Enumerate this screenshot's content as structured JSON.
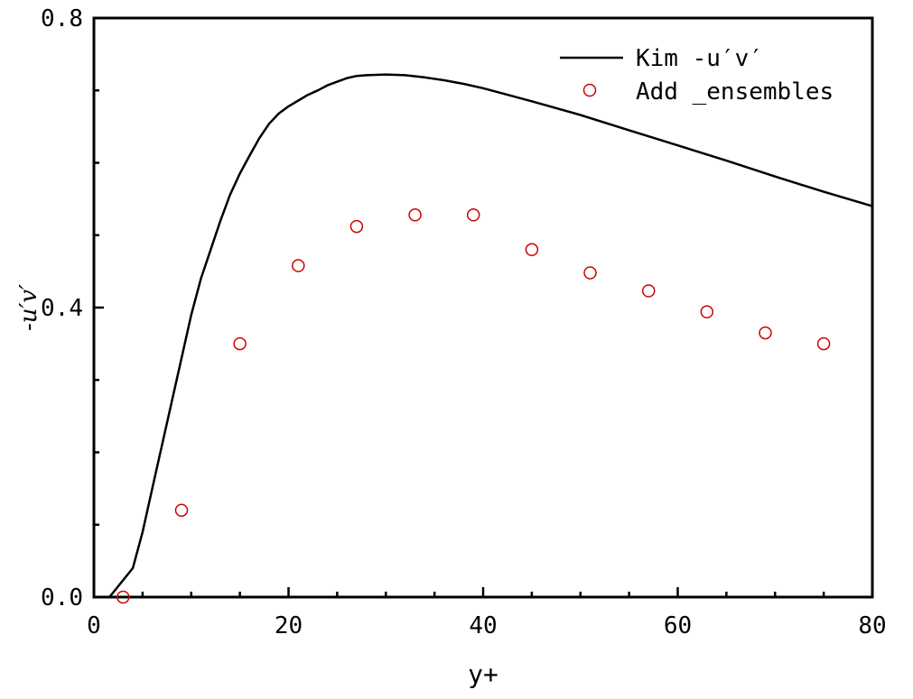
{
  "chart_data": {
    "type": "scatter",
    "xlabel": "y+",
    "ylabel": "-u′v′",
    "xlim": [
      0,
      80
    ],
    "ylim": [
      0,
      0.8
    ],
    "x_ticks": [
      "0",
      "20",
      "40",
      "60",
      "80"
    ],
    "y_ticks": [
      "0.0",
      "0.4",
      "0.8"
    ],
    "y_tick_values": [
      0,
      0.4,
      0.8
    ],
    "grid": false,
    "legend_position": "top-right",
    "series": [
      {
        "name": "Kim -u′v′",
        "kind": "line",
        "color": "#000000",
        "x": [
          1.6,
          2.5,
          4,
          5,
          6,
          7,
          8,
          9,
          10,
          11,
          12,
          13,
          14,
          15,
          16,
          17,
          18,
          19,
          20,
          21,
          22,
          23,
          24,
          25,
          26,
          27,
          28,
          30,
          32,
          34,
          36,
          38,
          40,
          45,
          50,
          55,
          60,
          65,
          70,
          75,
          80
        ],
        "y": [
          0.0,
          0.015,
          0.04,
          0.09,
          0.15,
          0.21,
          0.27,
          0.33,
          0.39,
          0.44,
          0.48,
          0.52,
          0.556,
          0.585,
          0.61,
          0.634,
          0.654,
          0.668,
          0.678,
          0.686,
          0.694,
          0.7,
          0.707,
          0.712,
          0.717,
          0.72,
          0.721,
          0.722,
          0.721,
          0.718,
          0.714,
          0.709,
          0.703,
          0.685,
          0.666,
          0.645,
          0.624,
          0.603,
          0.581,
          0.56,
          0.54
        ]
      },
      {
        "name": "Add _ensembles",
        "kind": "markers",
        "color": "#cc0000",
        "x": [
          3,
          9,
          15,
          21,
          27,
          33,
          39,
          45,
          51,
          57,
          63,
          69,
          75
        ],
        "y": [
          0.0,
          0.12,
          0.35,
          0.458,
          0.512,
          0.528,
          0.528,
          0.48,
          0.448,
          0.423,
          0.394,
          0.365,
          0.35
        ]
      }
    ]
  }
}
